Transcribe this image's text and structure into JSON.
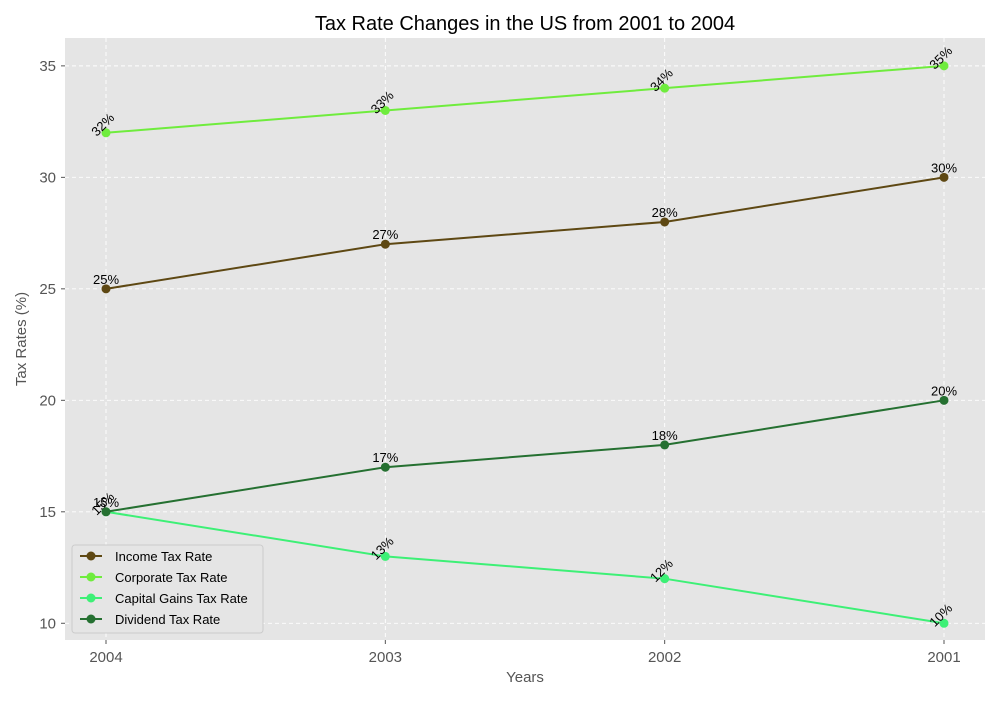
{
  "chart_data": {
    "type": "line",
    "title": "Tax Rate Changes in the US from 2001 to 2004",
    "xlabel": "Years",
    "ylabel": "Tax Rates (%)",
    "categories": [
      "2004",
      "2003",
      "2002",
      "2001"
    ],
    "ylim": [
      9.25,
      36.25
    ],
    "yticks": [
      10,
      15,
      20,
      25,
      30,
      35
    ],
    "grid": true,
    "legend_position": "bottom-left",
    "series": [
      {
        "name": "Income Tax Rate",
        "color": "#5e4813",
        "values": [
          25,
          27,
          28,
          30
        ],
        "labels": [
          "25%",
          "27%",
          "28%",
          "30%"
        ],
        "label_rotation": 0
      },
      {
        "name": "Corporate Tax Rate",
        "color": "#6fec3d",
        "values": [
          32,
          33,
          34,
          35
        ],
        "labels": [
          "32%",
          "33%",
          "34%",
          "35%"
        ],
        "label_rotation": 45
      },
      {
        "name": "Capital Gains Tax Rate",
        "color": "#3df076",
        "values": [
          15,
          13,
          12,
          10
        ],
        "labels": [
          "15%",
          "13%",
          "12%",
          "10%"
        ],
        "label_rotation": 45
      },
      {
        "name": "Dividend Tax Rate",
        "color": "#257031",
        "values": [
          15,
          17,
          18,
          20
        ],
        "labels": [
          "15%",
          "17%",
          "18%",
          "20%"
        ],
        "label_rotation": 0
      }
    ]
  }
}
